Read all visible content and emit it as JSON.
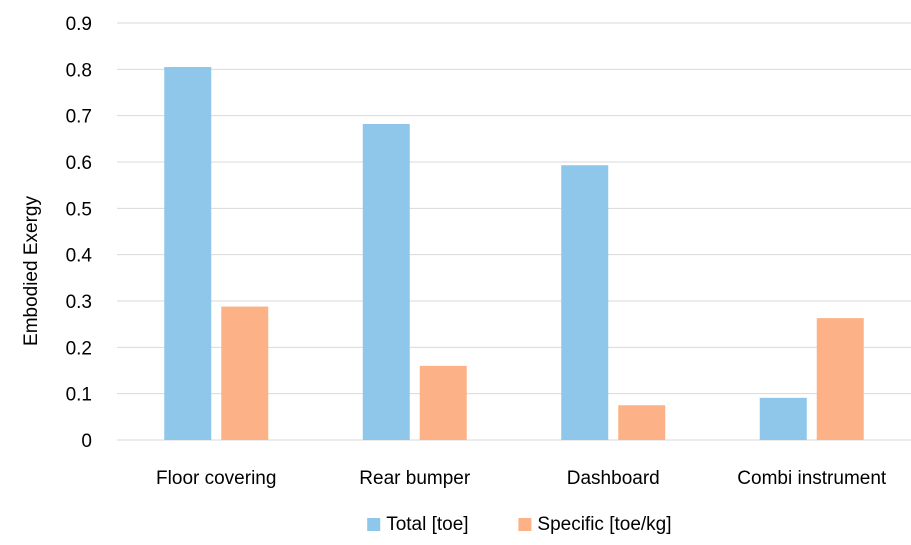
{
  "chart_data": {
    "type": "bar",
    "categories": [
      "Floor covering",
      "Rear bumper",
      "Dashboard",
      "Combi instrument"
    ],
    "series": [
      {
        "name": "Total [toe]",
        "values": [
          0.805,
          0.682,
          0.593,
          0.091
        ],
        "color": "#8ec7ea"
      },
      {
        "name": "Specific [toe/kg]",
        "values": [
          0.288,
          0.16,
          0.075,
          0.263
        ],
        "color": "#fcb286"
      }
    ],
    "ylabel": "Embodied Exergy",
    "ylim": [
      0,
      0.9
    ],
    "yticks": [
      "0",
      "0.1",
      "0.2",
      "0.3",
      "0.4",
      "0.5",
      "0.6",
      "0.7",
      "0.8",
      "0.9"
    ],
    "grid": true,
    "legend": "bottom-center"
  }
}
